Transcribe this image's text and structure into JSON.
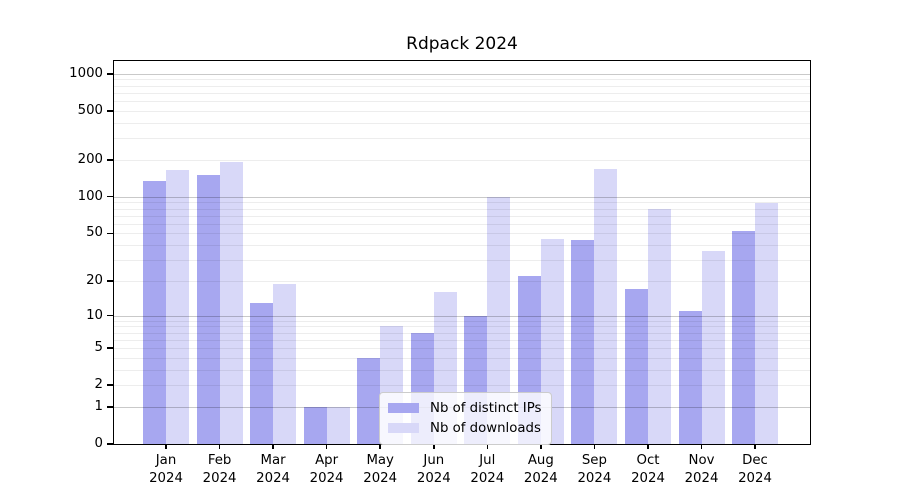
{
  "title": "Rdpack 2024",
  "colors": {
    "ips_bar": "#a7a7f0",
    "downloads_bar": "#d8d8f8",
    "major_gridline": "#c9c9c9",
    "minor_gridline": "#ededed",
    "spine": "#000000",
    "legend_border": "#cccccc",
    "background": "#ffffff",
    "text": "#000000"
  },
  "legend": {
    "items": [
      {
        "label": "Nb of distinct IPs",
        "color_key": "ips_bar"
      },
      {
        "label": "Nb of downloads",
        "color_key": "downloads_bar"
      }
    ]
  },
  "chart_data": {
    "type": "bar",
    "title": "Rdpack 2024",
    "categories": [
      "Jan",
      "Feb",
      "Mar",
      "Apr",
      "May",
      "Jun",
      "Jul",
      "Aug",
      "Sep",
      "Oct",
      "Nov",
      "Dec"
    ],
    "category_year": "2024",
    "series": [
      {
        "name": "Nb of distinct IPs",
        "color": "#a7a7f0",
        "values": [
          134,
          150,
          13,
          1,
          4,
          7,
          10,
          22,
          44,
          17,
          11,
          52
        ]
      },
      {
        "name": "Nb of downloads",
        "color": "#d8d8f8",
        "values": [
          165,
          193,
          19,
          1,
          8,
          16,
          100,
          45,
          168,
          80,
          36,
          88
        ]
      }
    ],
    "xlabel": "",
    "ylabel": "",
    "yscale": "log1p",
    "y_ticks": [
      0,
      1,
      2,
      5,
      10,
      20,
      50,
      100,
      200,
      500,
      1000
    ],
    "y_minor_gridlines": [
      2,
      3,
      4,
      5,
      6,
      7,
      8,
      9,
      20,
      30,
      40,
      50,
      60,
      70,
      80,
      90,
      200,
      300,
      400,
      500,
      600,
      700,
      800,
      900
    ],
    "y_major_gridlines": [
      1,
      10,
      100,
      1000
    ],
    "ylim": [
      0,
      1270
    ],
    "grid": true,
    "legend_position": "inside lower-center"
  }
}
